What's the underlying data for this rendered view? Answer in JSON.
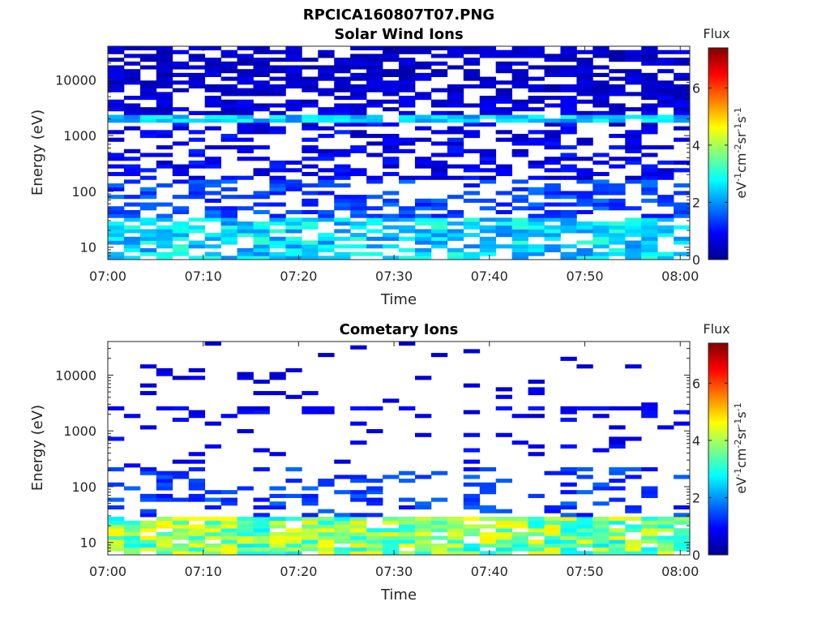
{
  "figure": {
    "main_title": "RPCICA160807T07.PNG"
  },
  "chart_data": [
    {
      "type": "heatmap",
      "title": "Solar Wind Ions",
      "xlabel": "Time",
      "ylabel": "Energy (eV)",
      "x_range_minutes": [
        0,
        61
      ],
      "x_ticks": [
        {
          "minute": 0,
          "label": "07:00"
        },
        {
          "minute": 10,
          "label": "07:10"
        },
        {
          "minute": 20,
          "label": "07:20"
        },
        {
          "minute": 30,
          "label": "07:30"
        },
        {
          "minute": 40,
          "label": "07:40"
        },
        {
          "minute": 50,
          "label": "07:50"
        },
        {
          "minute": 60,
          "label": "08:00"
        }
      ],
      "y_scale": "log",
      "y_range_eV": [
        6,
        40000
      ],
      "y_ticks": [
        {
          "value": 10,
          "label": "10"
        },
        {
          "value": 100,
          "label": "100"
        },
        {
          "value": 1000,
          "label": "1000"
        },
        {
          "value": 10000,
          "label": "10000"
        }
      ],
      "colorbar": {
        "title": "Flux",
        "min": 0,
        "max": 7.4,
        "ticks": [
          {
            "value": 0,
            "label": "0"
          },
          {
            "value": 2,
            "label": "2"
          },
          {
            "value": 4,
            "label": "4"
          },
          {
            "value": 6,
            "label": "6"
          }
        ],
        "unit_parts": [
          "eV",
          "-1",
          "cm",
          "-2",
          "sr",
          "-1",
          "s",
          "-1"
        ]
      },
      "profile": "solar_wind",
      "seed": 11
    },
    {
      "type": "heatmap",
      "title": "Cometary Ions",
      "xlabel": "Time",
      "ylabel": "Energy (eV)",
      "x_range_minutes": [
        0,
        61
      ],
      "x_ticks": [
        {
          "minute": 0,
          "label": "07:00"
        },
        {
          "minute": 10,
          "label": "07:10"
        },
        {
          "minute": 20,
          "label": "07:20"
        },
        {
          "minute": 30,
          "label": "07:30"
        },
        {
          "minute": 40,
          "label": "07:40"
        },
        {
          "minute": 50,
          "label": "07:50"
        },
        {
          "minute": 60,
          "label": "08:00"
        }
      ],
      "y_scale": "log",
      "y_range_eV": [
        6,
        40000
      ],
      "y_ticks": [
        {
          "value": 10,
          "label": "10"
        },
        {
          "value": 100,
          "label": "100"
        },
        {
          "value": 1000,
          "label": "1000"
        },
        {
          "value": 10000,
          "label": "10000"
        }
      ],
      "colorbar": {
        "title": "Flux",
        "min": 0,
        "max": 7.4,
        "ticks": [
          {
            "value": 0,
            "label": "0"
          },
          {
            "value": 2,
            "label": "2"
          },
          {
            "value": 4,
            "label": "4"
          },
          {
            "value": 6,
            "label": "6"
          }
        ],
        "unit_parts": [
          "eV",
          "-1",
          "cm",
          "-2",
          "sr",
          "-1",
          "s",
          "-1"
        ]
      },
      "profile": "cometary",
      "seed": 29
    }
  ]
}
